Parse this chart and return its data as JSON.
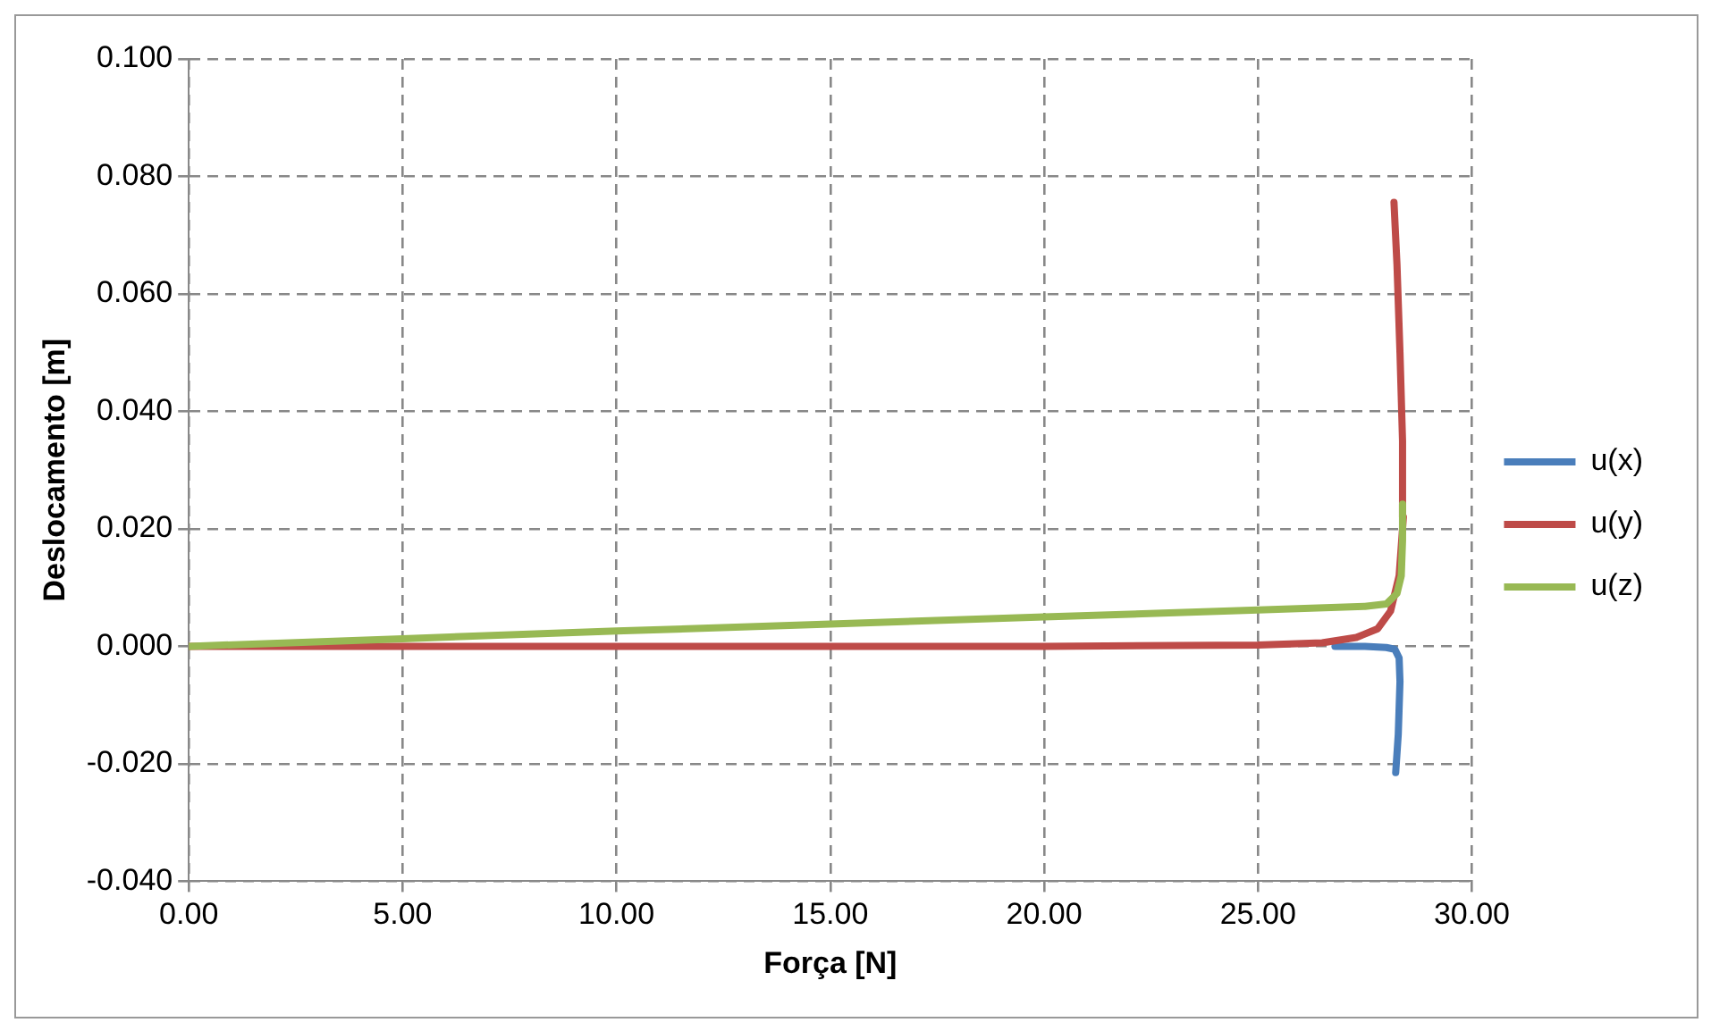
{
  "chart_data": {
    "type": "line",
    "xlabel": "Força [N]",
    "ylabel": "Deslocamento [m]",
    "xlim": [
      0,
      30
    ],
    "xticks": [
      {
        "value": 0,
        "label": "0.00"
      },
      {
        "value": 5,
        "label": "5.00"
      },
      {
        "value": 10,
        "label": "10.00"
      },
      {
        "value": 15,
        "label": "15.00"
      },
      {
        "value": 20,
        "label": "20.00"
      },
      {
        "value": 25,
        "label": "25.00"
      },
      {
        "value": 30,
        "label": "30.00"
      }
    ],
    "ylim": [
      -0.04,
      0.1
    ],
    "yticks": [
      {
        "value": -0.04,
        "label": "-0.040"
      },
      {
        "value": -0.02,
        "label": "-0.020"
      },
      {
        "value": 0,
        "label": "0.000"
      },
      {
        "value": 0.02,
        "label": "0.020"
      },
      {
        "value": 0.04,
        "label": "0.040"
      },
      {
        "value": 0.06,
        "label": "0.060"
      },
      {
        "value": 0.08,
        "label": "0.080"
      },
      {
        "value": 0.1,
        "label": "0.100"
      }
    ],
    "grid": true,
    "legend": "right",
    "marker": "none",
    "series": [
      {
        "name": "u(x)",
        "color": "#4a7ebb",
        "x": [
          26.8,
          27.5,
          28,
          28.2,
          28.3,
          28.32,
          28.28,
          28.22
        ],
        "values": [
          0,
          0,
          -0.0002,
          -0.0005,
          -0.002,
          -0.006,
          -0.015,
          -0.0215
        ]
      },
      {
        "name": "u(y)",
        "color": "#be4b48",
        "x": [
          0,
          10,
          20,
          25,
          26.5,
          27.3,
          27.8,
          28.1,
          28.3,
          28.4,
          28.38,
          28.32,
          28.25,
          28.18
        ],
        "values": [
          0,
          0,
          0,
          0.0002,
          0.0006,
          0.0015,
          0.003,
          0.006,
          0.012,
          0.022,
          0.035,
          0.05,
          0.065,
          0.0756
        ]
      },
      {
        "name": "u(z)",
        "color": "#98b954",
        "x": [
          0,
          5,
          10,
          15,
          20,
          25,
          27.5,
          28,
          28.25,
          28.35,
          28.38,
          28.38
        ],
        "values": [
          0,
          0.0013,
          0.0026,
          0.0038,
          0.005,
          0.0062,
          0.0068,
          0.0072,
          0.009,
          0.012,
          0.018,
          0.0242
        ]
      }
    ]
  }
}
